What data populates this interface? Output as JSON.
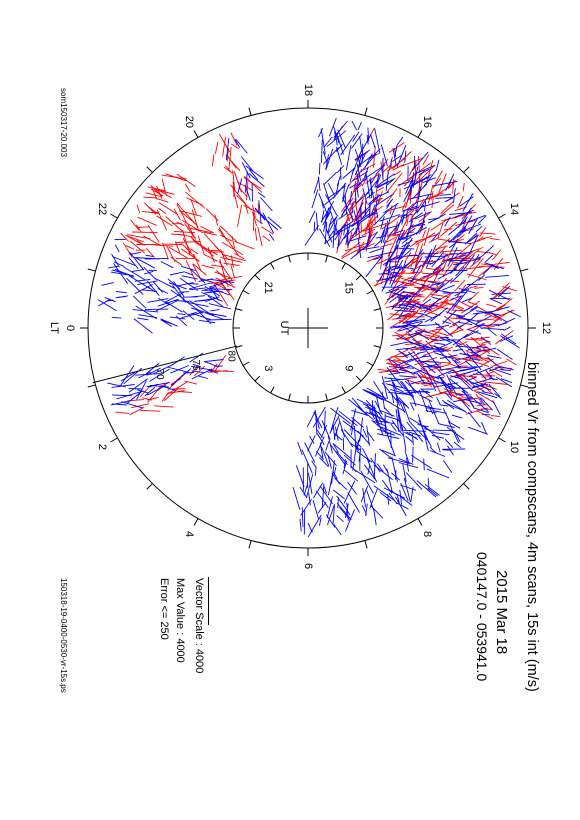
{
  "header": {
    "title": "binned Vr from compscans, 4m scans, 15s int (m/s)",
    "date": "2015 Mar 18",
    "time_range": "040147.0 - 053941.0"
  },
  "legend": {
    "vector_scale": "Vector Scale : 4000",
    "max_value": "Max Value : 4000",
    "error": "Error <= 250"
  },
  "footer": {
    "filename": "150318-19-0400-0530-vr-15s.ps",
    "source": "som150317-20.003"
  },
  "colors": {
    "toward": "#ff0000",
    "away": "#0000ff",
    "axis": "#000000"
  },
  "chart_data": {
    "type": "polar-dial",
    "outer_dial_labels": [
      "18",
      "16",
      "14",
      "12",
      "10",
      "8",
      "6",
      "4",
      "2",
      "0",
      "22",
      "20"
    ],
    "outer_dial_label_lt": [
      18,
      16,
      14,
      12,
      10,
      8,
      6,
      4,
      2,
      0,
      22,
      20
    ],
    "outer_axis_label": "LT",
    "inner_dial_labels": [
      "21",
      "15",
      "9",
      "3"
    ],
    "inner_dial_label_lt": [
      21,
      15,
      9,
      3
    ],
    "inner_axis_label": "UT",
    "latitude_labels": [
      "80",
      "75",
      "70"
    ],
    "latitude_values": [
      80,
      75,
      70
    ],
    "latitude_range": [
      60,
      90
    ],
    "series": [
      {
        "color": "#ff0000",
        "sectors_lt": [
          [
            16.8,
            10.2
          ],
          [
            22.4,
            20.6
          ],
          [
            19.9,
            19.4
          ],
          [
            1.8,
            1.4
          ]
        ]
      },
      {
        "color": "#0000ff",
        "sectors_lt": [
          [
            17.8,
            5.8
          ],
          [
            23.8,
            22.2
          ],
          [
            1.6,
            1.0
          ],
          [
            19.6,
            19.3
          ]
        ]
      }
    ]
  }
}
